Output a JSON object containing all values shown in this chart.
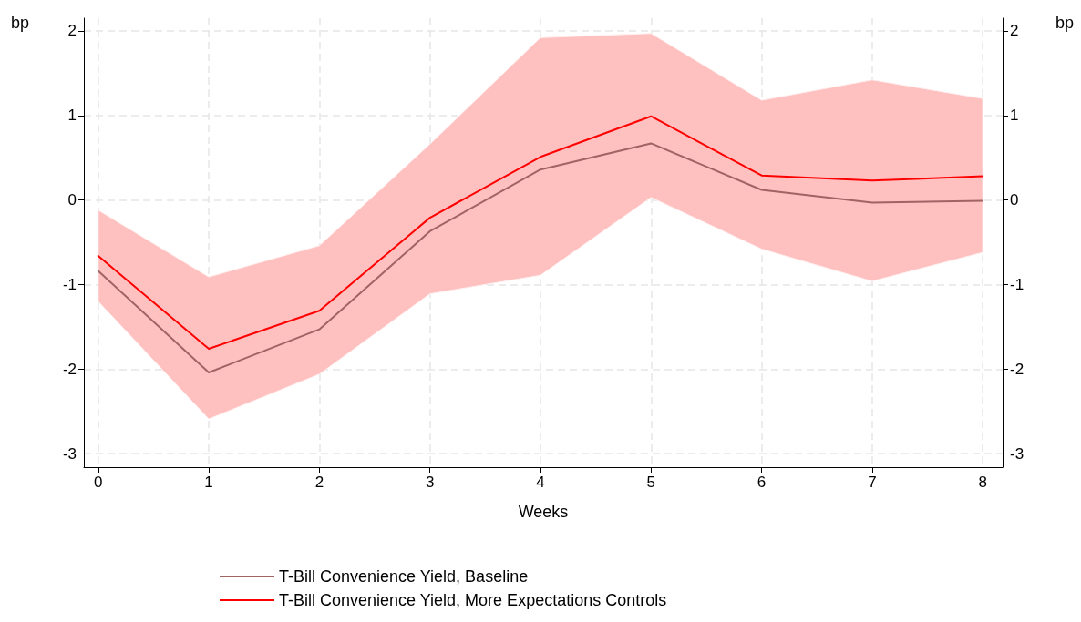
{
  "chart_data": {
    "type": "line",
    "xlabel": "Weeks",
    "ylabel": "bp",
    "y2label": "bp",
    "x": [
      0,
      1,
      2,
      3,
      4,
      5,
      6,
      7,
      8
    ],
    "series": [
      {
        "name": "T-Bill Convenience Yield, Baseline",
        "color": "#a06464",
        "values": [
          -0.84,
          -2.04,
          -1.53,
          -0.37,
          0.36,
          0.67,
          0.12,
          -0.03,
          -0.01
        ]
      },
      {
        "name": "T-Bill Convenience Yield, More Expectations Controls",
        "color": "#ff0000",
        "values": [
          -0.66,
          -1.76,
          -1.31,
          -0.21,
          0.51,
          0.99,
          0.29,
          0.23,
          0.28
        ],
        "lower": [
          -1.2,
          -2.59,
          -2.06,
          -1.11,
          -0.89,
          0.03,
          -0.58,
          -0.96,
          -0.62
        ],
        "upper": [
          -0.12,
          -0.91,
          -0.54,
          0.66,
          1.92,
          1.97,
          1.18,
          1.42,
          1.2
        ]
      }
    ],
    "xlim": [
      -0.13,
      8.18
    ],
    "xticks": [
      0,
      1,
      2,
      3,
      4,
      5,
      6,
      7,
      8
    ],
    "ylim": [
      -3.16,
      2.15
    ],
    "yticks": [
      -3,
      -2,
      -1,
      0,
      1,
      2
    ],
    "y2lim": [
      -3.16,
      2.15
    ],
    "y2ticks": [
      -3,
      -2,
      -1,
      0,
      1,
      2
    ],
    "grid": true,
    "legend": "bottom",
    "marker": "none",
    "line_style": "solid"
  }
}
